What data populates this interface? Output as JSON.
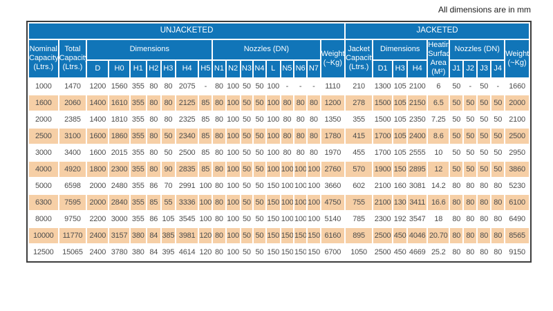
{
  "page": {
    "note": "All dimensions are in mm"
  },
  "colors": {
    "header_blue": "#1175b8",
    "row_alt_peach": "#f6cfa6",
    "row_base": "#ffffff",
    "outer_border": "#3c3c3c",
    "data_text": "#4c4c4c"
  },
  "table": {
    "banner": {
      "unjacketed": "UNJACKETED",
      "jacketed": "JACKETED"
    },
    "groups": {
      "nominal_capacity": "Nominal Capacity (Ltrs.)",
      "total_capacity": "Total Capacity (Ltrs.)",
      "dimensions_unjacketed": "Dimensions",
      "nozzles_unjacketed": "Nozzles (DN)",
      "weight_unjacketed": "Weight (~Kg)",
      "jacket_capacity": "Jacket Capacity (Ltrs.)",
      "dimensions_jacketed": "Dimensions",
      "heating_surface_area": "Heating Surface Area (M²)",
      "nozzles_jacketed": "Nozzles (DN)",
      "weight_jacketed": "Weight (~Kg)"
    },
    "sub_columns": [
      "D",
      "H0",
      "H1",
      "H2",
      "H3",
      "H4",
      "H5",
      "N1",
      "N2",
      "N3",
      "N4",
      "L",
      "N5",
      "N6",
      "N7",
      "D1",
      "H3",
      "H4",
      "J1",
      "J2",
      "J3",
      "J4"
    ],
    "column_keys": [
      "nominal-capacity",
      "total-capacity",
      "dim-d",
      "dim-h0",
      "dim-h1",
      "dim-h2",
      "dim-h3",
      "dim-h4",
      "dim-h5",
      "nozzle-n1",
      "nozzle-n2",
      "nozzle-n3",
      "nozzle-n4",
      "nozzle-l",
      "nozzle-n5",
      "nozzle-n6",
      "nozzle-n7",
      "weight-unjacketed",
      "jacket-capacity",
      "dim-d1",
      "dim-h3-jacketed",
      "dim-h4-jacketed",
      "heating-surface-area",
      "nozzle-j1",
      "nozzle-j2",
      "nozzle-j3",
      "nozzle-j4",
      "weight-jacketed"
    ],
    "rows": [
      [
        "1000",
        "1470",
        "1200",
        "1560",
        "355",
        "80",
        "80",
        "2075",
        "-",
        "80",
        "100",
        "50",
        "50",
        "100",
        "-",
        "-",
        "-",
        "1110",
        "210",
        "1300",
        "105",
        "2100",
        "6",
        "50",
        "-",
        "50",
        "-",
        "1660"
      ],
      [
        "1600",
        "2060",
        "1400",
        "1610",
        "355",
        "80",
        "80",
        "2125",
        "85",
        "80",
        "100",
        "50",
        "50",
        "100",
        "80",
        "80",
        "80",
        "1200",
        "278",
        "1500",
        "105",
        "2150",
        "6.5",
        "50",
        "50",
        "50",
        "50",
        "2000"
      ],
      [
        "2000",
        "2385",
        "1400",
        "1810",
        "355",
        "80",
        "80",
        "2325",
        "85",
        "80",
        "100",
        "50",
        "50",
        "100",
        "80",
        "80",
        "80",
        "1350",
        "355",
        "1500",
        "105",
        "2350",
        "7.25",
        "50",
        "50",
        "50",
        "50",
        "2100"
      ],
      [
        "2500",
        "3100",
        "1600",
        "1860",
        "355",
        "80",
        "50",
        "2340",
        "85",
        "80",
        "100",
        "50",
        "50",
        "100",
        "80",
        "80",
        "80",
        "1780",
        "415",
        "1700",
        "105",
        "2400",
        "8.6",
        "50",
        "50",
        "50",
        "50",
        "2500"
      ],
      [
        "3000",
        "3400",
        "1600",
        "2015",
        "355",
        "80",
        "50",
        "2500",
        "85",
        "80",
        "100",
        "50",
        "50",
        "100",
        "80",
        "80",
        "80",
        "1970",
        "455",
        "1700",
        "105",
        "2555",
        "10",
        "50",
        "50",
        "50",
        "50",
        "2950"
      ],
      [
        "4000",
        "4920",
        "1800",
        "2300",
        "355",
        "80",
        "90",
        "2835",
        "85",
        "80",
        "100",
        "50",
        "50",
        "100",
        "100",
        "100",
        "100",
        "2760",
        "570",
        "1900",
        "150",
        "2895",
        "12",
        "50",
        "50",
        "50",
        "50",
        "3860"
      ],
      [
        "5000",
        "6598",
        "2000",
        "2480",
        "355",
        "86",
        "70",
        "2991",
        "100",
        "80",
        "100",
        "50",
        "50",
        "150",
        "100",
        "100",
        "100",
        "3660",
        "602",
        "2100",
        "160",
        "3081",
        "14.2",
        "80",
        "80",
        "80",
        "80",
        "5230"
      ],
      [
        "6300",
        "7595",
        "2000",
        "2840",
        "355",
        "85",
        "55",
        "3336",
        "100",
        "80",
        "100",
        "50",
        "50",
        "150",
        "100",
        "100",
        "100",
        "4750",
        "755",
        "2100",
        "130",
        "3411",
        "16.6",
        "80",
        "80",
        "80",
        "80",
        "6100"
      ],
      [
        "8000",
        "9750",
        "2200",
        "3000",
        "355",
        "86",
        "105",
        "3545",
        "100",
        "80",
        "100",
        "50",
        "50",
        "150",
        "100",
        "100",
        "100",
        "5140",
        "785",
        "2300",
        "192",
        "3547",
        "18",
        "80",
        "80",
        "80",
        "80",
        "6490"
      ],
      [
        "10000",
        "11770",
        "2400",
        "3157",
        "380",
        "84",
        "385",
        "3981",
        "120",
        "80",
        "100",
        "50",
        "50",
        "150",
        "150",
        "150",
        "150",
        "6160",
        "895",
        "2500",
        "450",
        "4046",
        "20.70",
        "80",
        "80",
        "80",
        "80",
        "8565"
      ],
      [
        "12500",
        "15065",
        "2400",
        "3780",
        "380",
        "84",
        "395",
        "4614",
        "120",
        "80",
        "100",
        "50",
        "50",
        "150",
        "150",
        "150",
        "150",
        "6700",
        "1050",
        "2500",
        "450",
        "4669",
        "25.2",
        "80",
        "80",
        "80",
        "80",
        "9150"
      ]
    ]
  }
}
